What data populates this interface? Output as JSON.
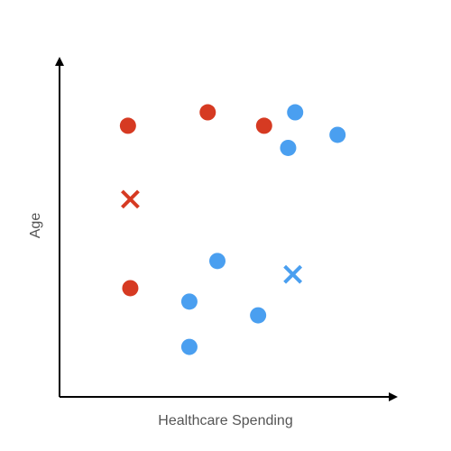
{
  "colors": {
    "axis": "#000000",
    "label": "#555555",
    "red": "#d63a22",
    "blue": "#4a9ff0"
  },
  "chart_data": {
    "type": "scatter",
    "xlabel": "Healthcare Spending",
    "ylabel": "Age",
    "xlim": [
      0,
      100
    ],
    "ylim": [
      0,
      100
    ],
    "grid": false,
    "legend": "none",
    "series": [
      {
        "color_key": "red",
        "marker": "circle",
        "points": [
          [
            20.5,
            80.8
          ],
          [
            44.4,
            84.8
          ],
          [
            61.3,
            80.8
          ],
          [
            21.2,
            32.4
          ]
        ]
      },
      {
        "color_key": "blue",
        "marker": "circle",
        "points": [
          [
            70.6,
            84.8
          ],
          [
            83.3,
            78.1
          ],
          [
            68.5,
            74.2
          ],
          [
            47.3,
            40.5
          ],
          [
            38.9,
            28.4
          ],
          [
            59.5,
            24.3
          ],
          [
            38.9,
            14.9
          ]
        ]
      },
      {
        "color_key": "red",
        "marker": "x",
        "points": [
          [
            21.2,
            58.9
          ]
        ]
      },
      {
        "color_key": "blue",
        "marker": "x",
        "points": [
          [
            69.9,
            36.5
          ]
        ]
      }
    ]
  }
}
